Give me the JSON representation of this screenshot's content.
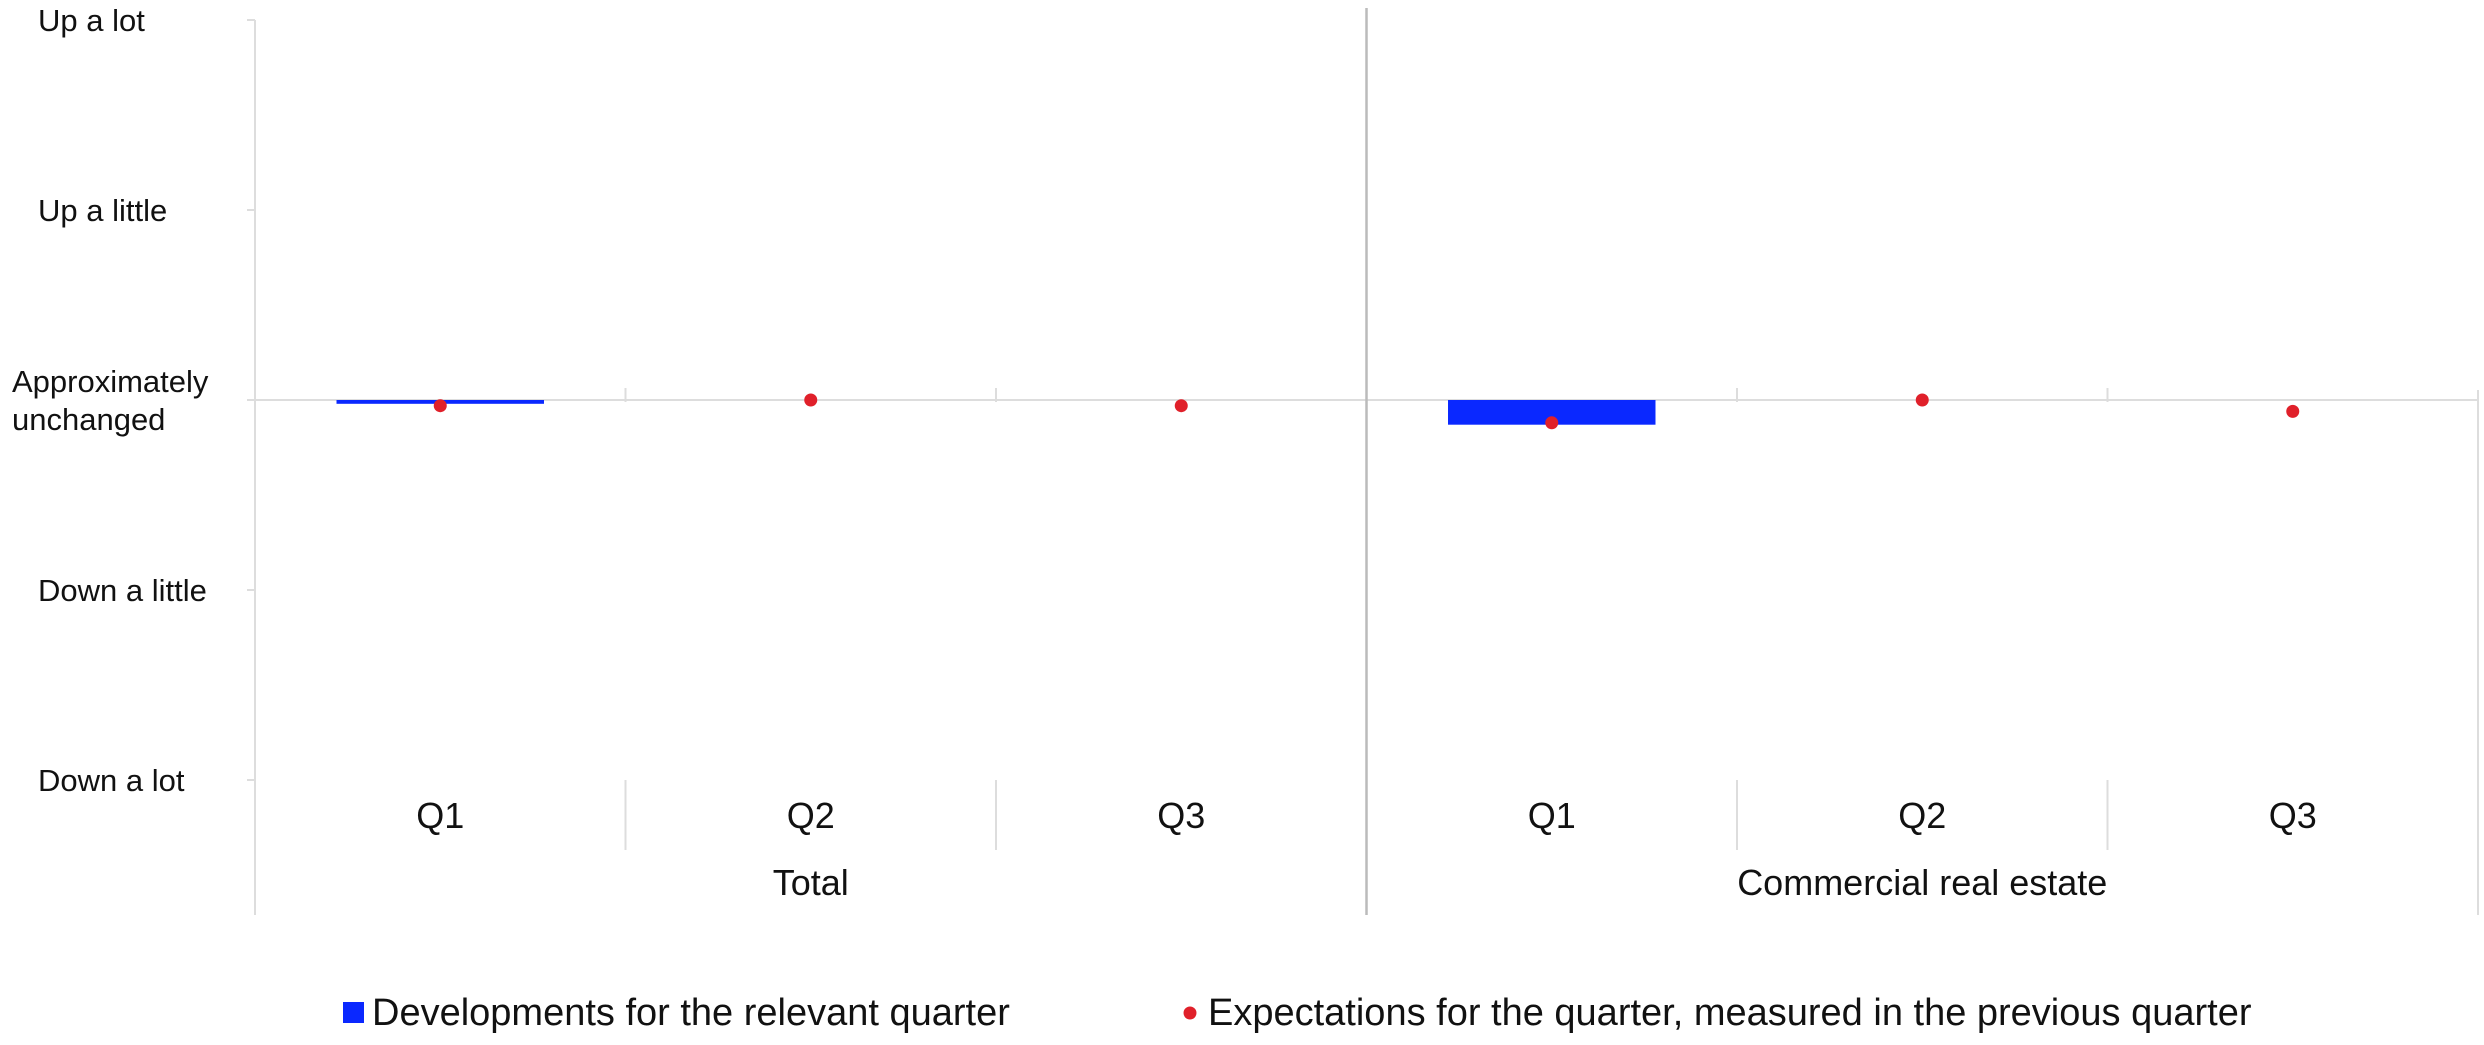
{
  "chart_data": {
    "type": "bar",
    "title": "",
    "xlabel": "",
    "ylabel": "",
    "y_scale": {
      "min": -2,
      "max": 2,
      "tick_values": [
        2,
        1,
        0,
        -1,
        -2
      ],
      "tick_labels": [
        [
          "Up a lot"
        ],
        [
          "Up a little"
        ],
        [
          "Approximately",
          "unchanged"
        ],
        [
          "Down a little"
        ],
        [
          "Down a lot"
        ]
      ]
    },
    "groups": [
      {
        "label": "Total",
        "categories": [
          "Q1",
          "Q2",
          "Q3"
        ],
        "bar_values": [
          -0.02,
          null,
          null
        ],
        "dot_values": [
          -0.03,
          0.0,
          -0.03
        ]
      },
      {
        "label": "Commercial real estate",
        "categories": [
          "Q1",
          "Q2",
          "Q3"
        ],
        "bar_values": [
          -0.13,
          null,
          null
        ],
        "dot_values": [
          -0.12,
          0.0,
          -0.06
        ]
      }
    ],
    "series": [
      {
        "name": "Developments for the relevant quarter",
        "kind": "bar",
        "color": "#0a28ff"
      },
      {
        "name": "Expectations for the quarter, measured in the previous quarter",
        "kind": "dot",
        "color": "#e0202a"
      }
    ],
    "grid": false,
    "legend_position": "bottom"
  }
}
